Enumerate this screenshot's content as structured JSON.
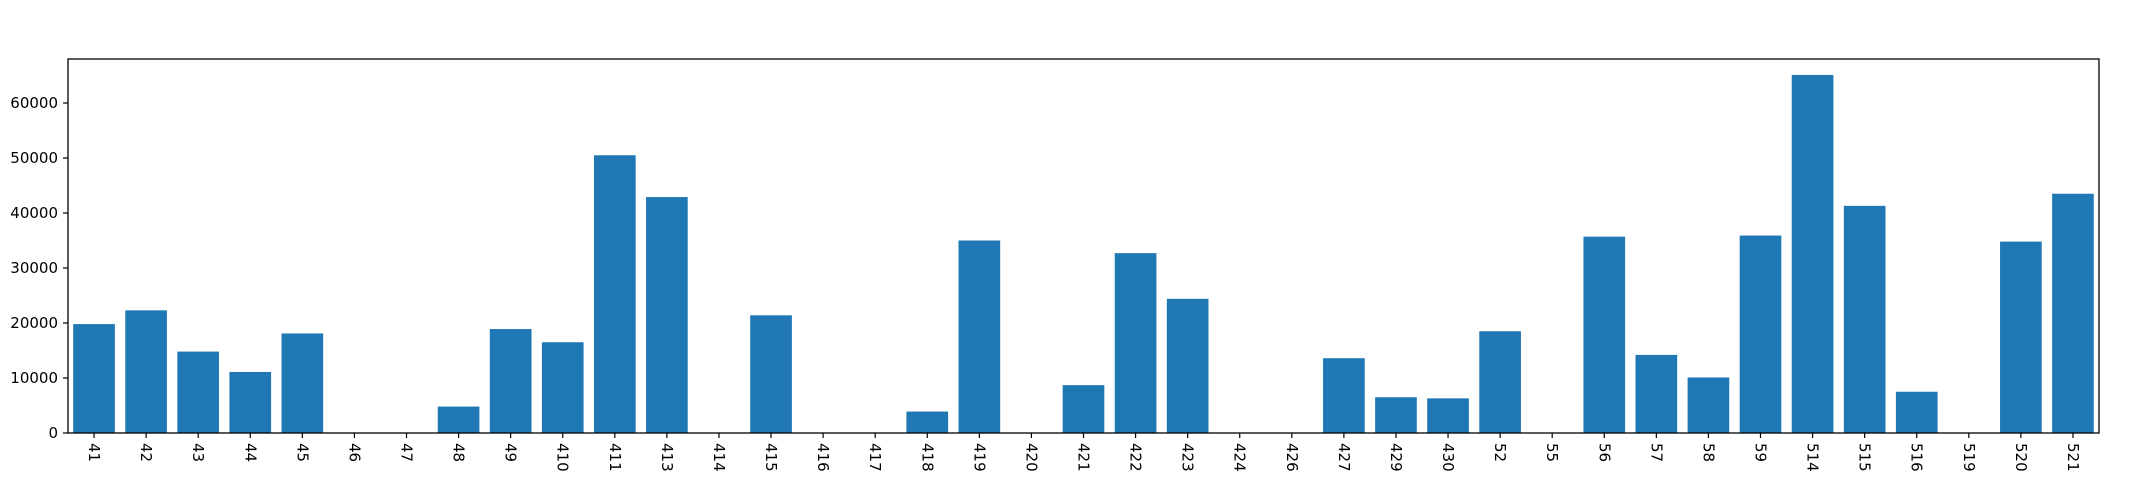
{
  "chart_data": {
    "type": "bar",
    "title": "",
    "xlabel": "",
    "ylabel": "",
    "ylim": [
      0,
      68000
    ],
    "yticks": [
      0,
      10000,
      20000,
      30000,
      40000,
      50000,
      60000
    ],
    "ytick_labels": [
      "0",
      "10000",
      "20000",
      "30000",
      "40000",
      "50000",
      "60000"
    ],
    "bar_color": "#1f77b4",
    "grid": false,
    "legend": "none",
    "categories": [
      "41",
      "42",
      "43",
      "44",
      "45",
      "46",
      "47",
      "48",
      "49",
      "410",
      "411",
      "413",
      "414",
      "415",
      "416",
      "417",
      "418",
      "419",
      "420",
      "421",
      "422",
      "423",
      "424",
      "426",
      "427",
      "429",
      "430",
      "52",
      "55",
      "56",
      "57",
      "58",
      "59",
      "514",
      "515",
      "516",
      "519",
      "520",
      "521"
    ],
    "values": [
      19800,
      22300,
      14800,
      11100,
      18100,
      0,
      0,
      4800,
      18900,
      16500,
      50500,
      42900,
      0,
      21400,
      0,
      0,
      3900,
      35000,
      0,
      8700,
      32700,
      24400,
      0,
      0,
      13600,
      6500,
      6300,
      18500,
      0,
      35700,
      14200,
      10100,
      35900,
      65100,
      41300,
      7500,
      0,
      34800,
      43500
    ]
  }
}
